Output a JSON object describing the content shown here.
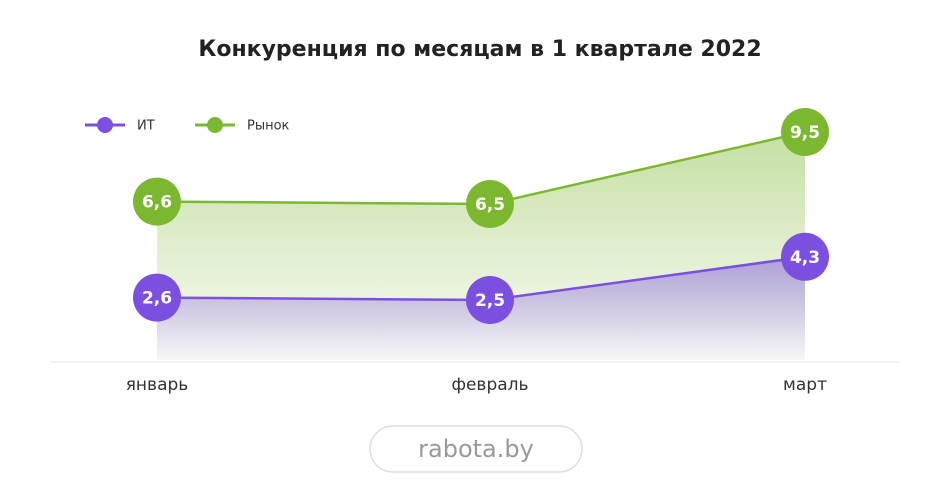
{
  "chart_data": {
    "type": "area-line",
    "title": "Конкуренция по месяцам в 1 квартале 2022",
    "categories": [
      "январь",
      "февраль",
      "март"
    ],
    "series": [
      {
        "name": "ИТ",
        "color": "#7b4fe0",
        "values": [
          2.6,
          2.5,
          4.3
        ],
        "value_labels": [
          "2,6",
          "2,5",
          "4,3"
        ]
      },
      {
        "name": "Рынок",
        "color": "#7cb82f",
        "values": [
          6.6,
          6.5,
          9.5
        ],
        "value_labels": [
          "6,6",
          "6,5",
          "9,5"
        ]
      }
    ],
    "ylim": [
      0,
      10
    ],
    "legend": "top-left",
    "footer": "rabota.by"
  }
}
